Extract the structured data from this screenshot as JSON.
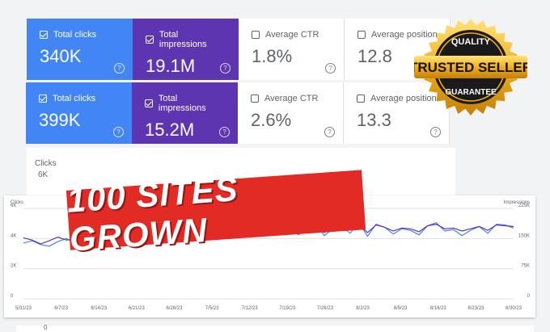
{
  "rows": [
    {
      "metrics": [
        {
          "label": "Total clicks",
          "value": "340K",
          "checked": true,
          "color": "#4285f4"
        },
        {
          "label": "Total impressions",
          "value": "19.1M",
          "checked": true,
          "color": "#5e35b1"
        },
        {
          "label": "Average CTR",
          "value": "1.8%",
          "checked": false
        },
        {
          "label": "Average position",
          "value": "12.8",
          "checked": false
        }
      ]
    },
    {
      "metrics": [
        {
          "label": "Total clicks",
          "value": "399K",
          "checked": true,
          "color": "#4285f4"
        },
        {
          "label": "Total impressions",
          "value": "15.2M",
          "checked": true,
          "color": "#5e35b1"
        },
        {
          "label": "Average CTR",
          "value": "2.6%",
          "checked": false
        },
        {
          "label": "Average position",
          "value": "13.3",
          "checked": false
        }
      ]
    }
  ],
  "chart_header": {
    "title": "Clicks",
    "first_tick": "6K"
  },
  "chart_data": {
    "type": "line",
    "left_axis_label": "Clicks",
    "right_axis_label": "Impressions",
    "left_ticks": [
      "6K",
      "4K",
      "2K",
      "0"
    ],
    "right_ticks": [
      "225K",
      "150K",
      "75K",
      "0"
    ],
    "x_ticks": [
      "5/31/23",
      "6/7/23",
      "6/14/23",
      "6/21/23",
      "6/28/23",
      "7/5/23",
      "7/12/23",
      "7/19/23",
      "7/26/23",
      "8/2/23",
      "8/9/23",
      "8/16/23",
      "8/23/23",
      "8/30/23"
    ],
    "series": [
      {
        "name": "Clicks",
        "color": "#4285f4",
        "axis": "left",
        "values": [
          3700,
          3850,
          3600,
          3500,
          3800,
          4000,
          3700,
          4200,
          4350,
          4250,
          4000,
          4300,
          4550,
          4200,
          4650,
          4400,
          4800,
          4300,
          4350,
          4450,
          4600,
          4100,
          4500,
          4800,
          4950,
          4850,
          4700,
          5050,
          4750,
          4900,
          5000,
          4600,
          4250,
          4750,
          4900,
          4200,
          4650,
          4800,
          4350,
          5100,
          4150,
          4950,
          4750,
          4300,
          4650,
          4550,
          4250,
          4850,
          5050,
          4500,
          4600,
          4200,
          4550,
          4800,
          4350,
          4950,
          4900,
          4700
        ]
      },
      {
        "name": "Impressions",
        "color": "#5e35b1",
        "axis": "left",
        "values": [
          4050,
          3900,
          3650,
          3850,
          4100,
          3900,
          3950,
          4250,
          4200,
          4400,
          4300,
          4450,
          4500,
          4400,
          4600,
          4500,
          4650,
          4450,
          4500,
          4550,
          4650,
          4350,
          4600,
          4750,
          4800,
          4750,
          4700,
          4850,
          4650,
          4750,
          4900,
          4750,
          4500,
          4800,
          4850,
          4400,
          4700,
          4800,
          4550,
          4950,
          4400,
          4900,
          4750,
          4500,
          4700,
          4650,
          4450,
          4850,
          4950,
          4650,
          4700,
          4500,
          4650,
          4800,
          4550,
          4900,
          4850,
          4800
        ]
      }
    ],
    "ylim": [
      0,
      6000
    ],
    "grid": true
  },
  "banner": {
    "text": "100 SITES GROWN"
  },
  "badge": {
    "top": "QUALITY",
    "main": "TRUSTED SELLER",
    "bottom": "GUARANTEE"
  },
  "bottom_tick": "0"
}
